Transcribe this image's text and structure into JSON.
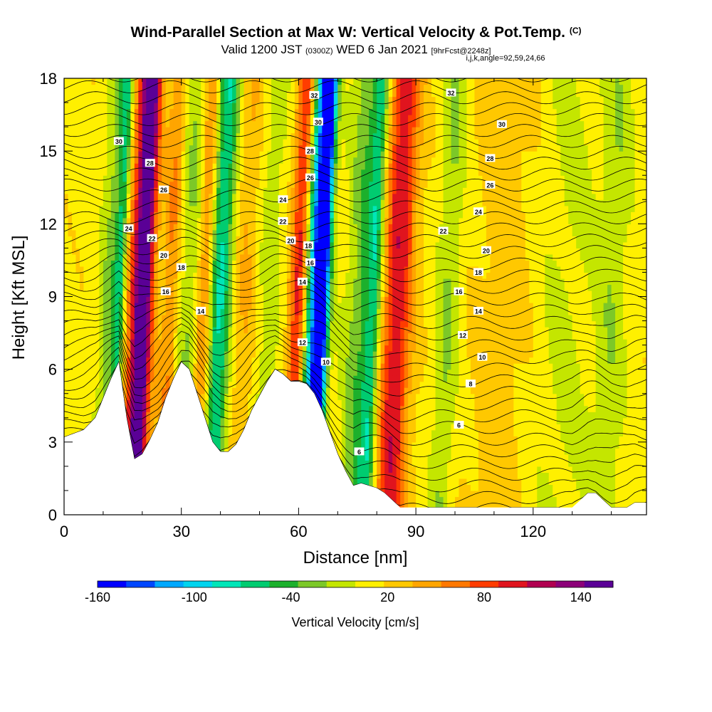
{
  "header": {
    "title_main": "Wind-Parallel Section at Max W: Vertical Velocity & Pot.Temp.",
    "title_unit": "(C)",
    "valid_prefix": "Valid 1200 JST",
    "valid_utc": "(0300Z)",
    "valid_date": "WED 6 Jan 2021",
    "forecast": "[9hrFcst@2248z]",
    "indices": "i,j,k,angle=92,59,24,66"
  },
  "chart_data": {
    "type": "heatmap",
    "xlabel": "Distance [nm]",
    "ylabel": "Height [Kft MSL]",
    "xlim": [
      0,
      149
    ],
    "ylim": [
      0,
      18
    ],
    "x_ticks": [
      0,
      30,
      60,
      90,
      120
    ],
    "y_ticks": [
      0,
      3,
      6,
      9,
      12,
      15,
      18
    ],
    "x_tick_labels": [
      "0",
      "30",
      "60",
      "90",
      "120"
    ],
    "y_tick_labels": [
      "0",
      "3",
      "6",
      "9",
      "12",
      "15",
      "18"
    ],
    "terrain": {
      "x": [
        0,
        5,
        8,
        10,
        12,
        14,
        16,
        18,
        20,
        22,
        24,
        26,
        28,
        30,
        32,
        34,
        36,
        38,
        40,
        42,
        44,
        46,
        48,
        50,
        52,
        54,
        56,
        58,
        60,
        62,
        64,
        66,
        68,
        70,
        72,
        74,
        76,
        78,
        80,
        82,
        84,
        86,
        88,
        90,
        95,
        100,
        110,
        120,
        130,
        132,
        134,
        136,
        138,
        140,
        142,
        144,
        146,
        149
      ],
      "h": [
        3.2,
        3.5,
        4.0,
        4.8,
        5.6,
        6.3,
        4.0,
        2.3,
        2.5,
        3.1,
        3.8,
        4.8,
        5.6,
        6.3,
        6.0,
        5.0,
        4.0,
        3.0,
        2.6,
        2.6,
        2.9,
        3.5,
        4.3,
        4.9,
        5.5,
        6.0,
        5.8,
        5.5,
        5.5,
        5.4,
        5.0,
        4.3,
        3.4,
        2.5,
        1.8,
        1.2,
        1.3,
        1.2,
        1.1,
        0.9,
        0.6,
        0.3,
        0.3,
        0.3,
        0.3,
        0.3,
        0.3,
        0.3,
        0.3,
        0.6,
        0.9,
        0.9,
        0.6,
        0.3,
        0.3,
        0.3,
        0.5,
        0.5
      ]
    },
    "wind_bands": [
      {
        "x": 12,
        "w": 3,
        "v": -40
      },
      {
        "x": 14,
        "w": 1.5,
        "v": -60
      },
      {
        "x": 19,
        "w": 4,
        "v": 80
      },
      {
        "x": 20,
        "w": 2,
        "v": 100
      },
      {
        "x": 27,
        "w": 2,
        "v": 40
      },
      {
        "x": 32,
        "w": 3,
        "v": -30
      },
      {
        "x": 36,
        "w": 2.5,
        "v": 90
      },
      {
        "x": 39,
        "w": 4,
        "v": -100
      },
      {
        "x": 45,
        "w": 4,
        "v": 30
      },
      {
        "x": 52,
        "w": 3,
        "v": -25
      },
      {
        "x": 60,
        "w": 2.5,
        "v": 95
      },
      {
        "x": 64,
        "w": 3,
        "v": -150
      },
      {
        "x": 66,
        "w": 1.5,
        "v": -110
      },
      {
        "x": 76,
        "w": 4,
        "v": -45
      },
      {
        "x": 79,
        "w": 2,
        "v": -60
      },
      {
        "x": 85,
        "w": 4,
        "v": 90
      },
      {
        "x": 98,
        "w": 3,
        "v": -30
      },
      {
        "x": 112,
        "w": 8,
        "v": 15
      },
      {
        "x": 128,
        "w": 8,
        "v": -15
      },
      {
        "x": 140,
        "w": 4,
        "v": -25
      }
    ],
    "contour_labels": [
      {
        "text": "30",
        "x": 14,
        "y": 15.4
      },
      {
        "text": "28",
        "x": 22,
        "y": 14.5
      },
      {
        "text": "26",
        "x": 25.5,
        "y": 13.4
      },
      {
        "text": "24",
        "x": 16.5,
        "y": 11.8
      },
      {
        "text": "22",
        "x": 22.5,
        "y": 11.4
      },
      {
        "text": "20",
        "x": 25.5,
        "y": 10.7
      },
      {
        "text": "18",
        "x": 30,
        "y": 10.2
      },
      {
        "text": "16",
        "x": 26,
        "y": 9.2
      },
      {
        "text": "14",
        "x": 35,
        "y": 8.4
      },
      {
        "text": "24",
        "x": 56,
        "y": 13.0
      },
      {
        "text": "22",
        "x": 56,
        "y": 12.1
      },
      {
        "text": "20",
        "x": 58,
        "y": 11.3
      },
      {
        "text": "18",
        "x": 62.5,
        "y": 11.1
      },
      {
        "text": "16",
        "x": 63,
        "y": 10.4
      },
      {
        "text": "14",
        "x": 61,
        "y": 9.6
      },
      {
        "text": "12",
        "x": 61,
        "y": 7.1
      },
      {
        "text": "10",
        "x": 67,
        "y": 6.3
      },
      {
        "text": "6",
        "x": 75.5,
        "y": 2.6
      },
      {
        "text": "32",
        "x": 64,
        "y": 17.3
      },
      {
        "text": "30",
        "x": 65,
        "y": 16.2
      },
      {
        "text": "28",
        "x": 63,
        "y": 15.0
      },
      {
        "text": "26",
        "x": 63,
        "y": 13.9
      },
      {
        "text": "32",
        "x": 99,
        "y": 17.4
      },
      {
        "text": "30",
        "x": 112,
        "y": 16.1
      },
      {
        "text": "28",
        "x": 109,
        "y": 14.7
      },
      {
        "text": "26",
        "x": 109,
        "y": 13.6
      },
      {
        "text": "24",
        "x": 106,
        "y": 12.5
      },
      {
        "text": "22",
        "x": 97,
        "y": 11.7
      },
      {
        "text": "20",
        "x": 108,
        "y": 10.9
      },
      {
        "text": "18",
        "x": 106,
        "y": 10.0
      },
      {
        "text": "16",
        "x": 101,
        "y": 9.2
      },
      {
        "text": "14",
        "x": 106,
        "y": 8.4
      },
      {
        "text": "12",
        "x": 102,
        "y": 7.4
      },
      {
        "text": "10",
        "x": 107,
        "y": 6.5
      },
      {
        "text": "8",
        "x": 104,
        "y": 5.4
      },
      {
        "text": "6",
        "x": 101,
        "y": 3.7
      }
    ]
  },
  "colorbar": {
    "title": "Vertical Velocity [cm/s]",
    "labels": [
      "-160",
      "-100",
      "-40",
      "20",
      "80",
      "140"
    ],
    "label_values": [
      -160,
      -100,
      -40,
      20,
      80,
      140
    ],
    "range": [
      -160,
      160
    ],
    "colors": [
      "#0000ff",
      "#0047ff",
      "#00a8ff",
      "#00d4ee",
      "#00e6b8",
      "#00cc70",
      "#1cb02c",
      "#7cc828",
      "#c4e600",
      "#fff000",
      "#ffc800",
      "#ffa500",
      "#ff7800",
      "#ff3c00",
      "#e0141e",
      "#b00050",
      "#8c0078",
      "#5a0096"
    ]
  }
}
